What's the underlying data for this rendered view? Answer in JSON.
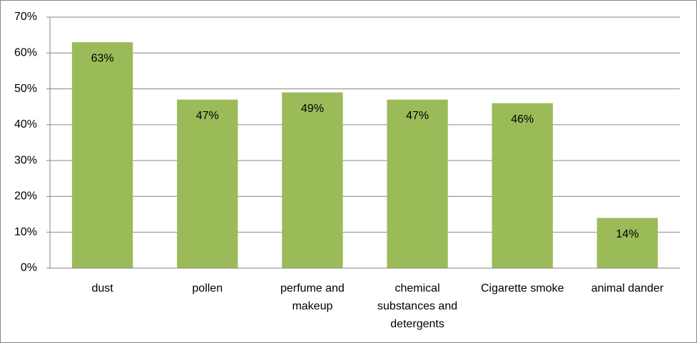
{
  "chart_data": {
    "type": "bar",
    "categories": [
      "dust",
      "pollen",
      "perfume and makeup",
      "chemical substances and detergents",
      "Cigarette smoke",
      "animal dander"
    ],
    "values": [
      63,
      47,
      49,
      47,
      46,
      14
    ],
    "value_labels": [
      "63%",
      "47%",
      "49%",
      "47%",
      "46%",
      "14%"
    ],
    "color": "#9bbb59",
    "ylim": [
      0,
      70
    ],
    "yticks": [
      {
        "value": 0,
        "label": "0%"
      },
      {
        "value": 10,
        "label": "10%"
      },
      {
        "value": 20,
        "label": "20%"
      },
      {
        "value": 30,
        "label": "30%"
      },
      {
        "value": 40,
        "label": "40%"
      },
      {
        "value": 50,
        "label": "50%"
      },
      {
        "value": 60,
        "label": "60%"
      },
      {
        "value": 70,
        "label": "70%"
      }
    ],
    "grid": true
  }
}
